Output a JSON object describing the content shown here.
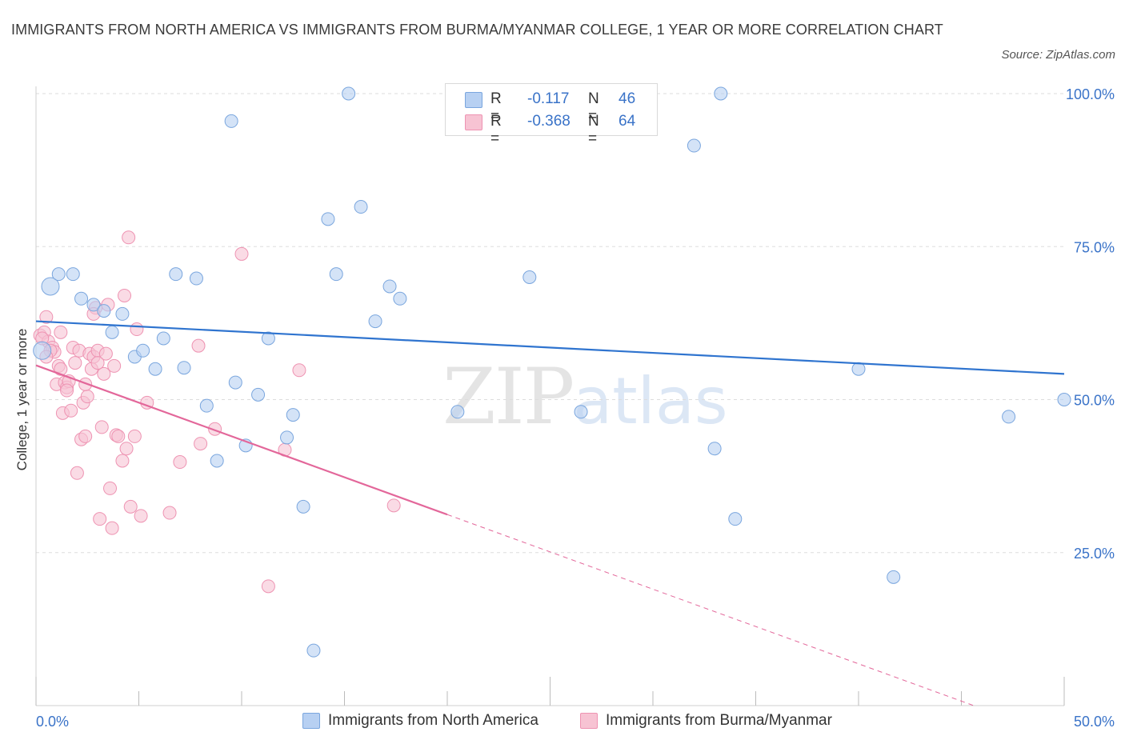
{
  "title": "IMMIGRANTS FROM NORTH AMERICA VS IMMIGRANTS FROM BURMA/MYANMAR COLLEGE, 1 YEAR OR MORE CORRELATION CHART",
  "source": "Source: ZipAtlas.com",
  "watermark": {
    "zip": "ZIP",
    "atlas": "atlas"
  },
  "legend": {
    "r_label": "R =",
    "n_label": "N =",
    "series": [
      {
        "r": "-0.117",
        "n": "46"
      },
      {
        "r": "-0.368",
        "n": "64"
      }
    ]
  },
  "colors": {
    "blue_fill": "#b7d0f2",
    "blue_stroke": "#7aa6de",
    "blue_line": "#2f74cf",
    "pink_fill": "#f7c3d3",
    "pink_stroke": "#ee93b2",
    "pink_line": "#e3679a",
    "tick_label": "#3a73c8",
    "grid": "#dddddd"
  },
  "chart_data": {
    "type": "scatter",
    "title": "IMMIGRANTS FROM NORTH AMERICA VS IMMIGRANTS FROM BURMA/MYANMAR COLLEGE, 1 YEAR OR MORE CORRELATION CHART",
    "xlabel": "",
    "ylabel": "College, 1 year or more",
    "xlim": [
      0,
      50
    ],
    "ylim": [
      0,
      100
    ],
    "x_tick_labels": [
      "0.0%",
      "50.0%"
    ],
    "y_tick_labels": [
      "25.0%",
      "50.0%",
      "75.0%",
      "100.0%"
    ],
    "y_ticks": [
      25,
      50,
      75,
      100
    ],
    "grid": true,
    "series": [
      {
        "name": "Immigrants from North America",
        "color": "#b7d0f2",
        "trend": {
          "x": [
            0,
            50
          ],
          "y": [
            62.8,
            54.2
          ],
          "dashed_from": null
        },
        "points": [
          {
            "x": 0.3,
            "y": 58,
            "big": true
          },
          {
            "x": 0.7,
            "y": 68.5,
            "big": true
          },
          {
            "x": 1.1,
            "y": 70.5
          },
          {
            "x": 1.8,
            "y": 70.5
          },
          {
            "x": 2.2,
            "y": 66.5
          },
          {
            "x": 2.8,
            "y": 65.5
          },
          {
            "x": 3.3,
            "y": 64.5
          },
          {
            "x": 3.7,
            "y": 61
          },
          {
            "x": 4.2,
            "y": 64
          },
          {
            "x": 4.8,
            "y": 57
          },
          {
            "x": 5.2,
            "y": 58
          },
          {
            "x": 5.8,
            "y": 55
          },
          {
            "x": 6.2,
            "y": 60
          },
          {
            "x": 6.8,
            "y": 70.5
          },
          {
            "x": 7.2,
            "y": 55.2
          },
          {
            "x": 7.8,
            "y": 69.8
          },
          {
            "x": 8.3,
            "y": 49
          },
          {
            "x": 8.8,
            "y": 40
          },
          {
            "x": 9.5,
            "y": 95.5
          },
          {
            "x": 9.7,
            "y": 52.8
          },
          {
            "x": 10.2,
            "y": 42.5
          },
          {
            "x": 10.8,
            "y": 50.8
          },
          {
            "x": 11.3,
            "y": 60
          },
          {
            "x": 12.2,
            "y": 43.8
          },
          {
            "x": 12.5,
            "y": 47.5
          },
          {
            "x": 13,
            "y": 32.5
          },
          {
            "x": 13.5,
            "y": 9
          },
          {
            "x": 14.2,
            "y": 79.5
          },
          {
            "x": 14.6,
            "y": 70.5
          },
          {
            "x": 15.2,
            "y": 100
          },
          {
            "x": 15.8,
            "y": 81.5
          },
          {
            "x": 16.5,
            "y": 62.8
          },
          {
            "x": 17.2,
            "y": 68.5
          },
          {
            "x": 17.7,
            "y": 66.5
          },
          {
            "x": 20.5,
            "y": 48
          },
          {
            "x": 24,
            "y": 70
          },
          {
            "x": 26.5,
            "y": 48
          },
          {
            "x": 32,
            "y": 91.5
          },
          {
            "x": 33.3,
            "y": 100
          },
          {
            "x": 33,
            "y": 42
          },
          {
            "x": 34,
            "y": 30.5
          },
          {
            "x": 40,
            "y": 55
          },
          {
            "x": 41.7,
            "y": 21
          },
          {
            "x": 47.3,
            "y": 47.2
          },
          {
            "x": 50,
            "y": 50
          },
          {
            "x": 28.5,
            "y": 100
          }
        ]
      },
      {
        "name": "Immigrants from Burma/Myanmar",
        "color": "#f7c3d3",
        "trend": {
          "x": [
            0,
            45.6
          ],
          "y": [
            55.6,
            0
          ],
          "dashed_from": 20
        },
        "points": [
          {
            "x": 0.2,
            "y": 60.5
          },
          {
            "x": 0.4,
            "y": 61
          },
          {
            "x": 0.5,
            "y": 63.5
          },
          {
            "x": 0.6,
            "y": 59.5
          },
          {
            "x": 0.8,
            "y": 58.5
          },
          {
            "x": 0.9,
            "y": 57.8
          },
          {
            "x": 1,
            "y": 52.5
          },
          {
            "x": 1.1,
            "y": 55.5
          },
          {
            "x": 1.2,
            "y": 61
          },
          {
            "x": 1.3,
            "y": 47.8
          },
          {
            "x": 1.4,
            "y": 52.8
          },
          {
            "x": 1.5,
            "y": 52
          },
          {
            "x": 1.6,
            "y": 53
          },
          {
            "x": 1.7,
            "y": 48.2
          },
          {
            "x": 1.8,
            "y": 58.5
          },
          {
            "x": 1.9,
            "y": 56
          },
          {
            "x": 2,
            "y": 38
          },
          {
            "x": 2.1,
            "y": 58
          },
          {
            "x": 2.2,
            "y": 43.5
          },
          {
            "x": 2.3,
            "y": 49.5
          },
          {
            "x": 2.4,
            "y": 44
          },
          {
            "x": 2.5,
            "y": 50.5
          },
          {
            "x": 2.6,
            "y": 57.5
          },
          {
            "x": 2.7,
            "y": 55
          },
          {
            "x": 2.8,
            "y": 57
          },
          {
            "x": 2.9,
            "y": 65
          },
          {
            "x": 3,
            "y": 58
          },
          {
            "x": 3.1,
            "y": 30.5
          },
          {
            "x": 3.2,
            "y": 45.5
          },
          {
            "x": 3.3,
            "y": 54.2
          },
          {
            "x": 3.4,
            "y": 57.5
          },
          {
            "x": 3.5,
            "y": 65.5
          },
          {
            "x": 3.6,
            "y": 35.5
          },
          {
            "x": 3.7,
            "y": 29
          },
          {
            "x": 3.8,
            "y": 55.5
          },
          {
            "x": 3.9,
            "y": 44.2
          },
          {
            "x": 4,
            "y": 44
          },
          {
            "x": 4.2,
            "y": 40
          },
          {
            "x": 4.3,
            "y": 67
          },
          {
            "x": 4.4,
            "y": 42
          },
          {
            "x": 4.5,
            "y": 76.5
          },
          {
            "x": 4.6,
            "y": 32.5
          },
          {
            "x": 4.8,
            "y": 44
          },
          {
            "x": 4.9,
            "y": 61.5
          },
          {
            "x": 5.1,
            "y": 31
          },
          {
            "x": 5.4,
            "y": 49.5
          },
          {
            "x": 6.5,
            "y": 31.5
          },
          {
            "x": 7,
            "y": 39.8
          },
          {
            "x": 7.9,
            "y": 58.8
          },
          {
            "x": 8,
            "y": 42.8
          },
          {
            "x": 8.7,
            "y": 45.2
          },
          {
            "x": 10,
            "y": 73.8
          },
          {
            "x": 11.3,
            "y": 19.5
          },
          {
            "x": 12.1,
            "y": 41.8
          },
          {
            "x": 12.8,
            "y": 54.8
          },
          {
            "x": 17.4,
            "y": 32.7
          },
          {
            "x": 0.3,
            "y": 60
          },
          {
            "x": 0.7,
            "y": 58
          },
          {
            "x": 1.5,
            "y": 51.5
          },
          {
            "x": 2.4,
            "y": 52.5
          },
          {
            "x": 3.0,
            "y": 56
          },
          {
            "x": 2.8,
            "y": 64
          },
          {
            "x": 1.2,
            "y": 55
          },
          {
            "x": 0.5,
            "y": 57
          }
        ]
      }
    ],
    "legend_placement": "bottom"
  }
}
